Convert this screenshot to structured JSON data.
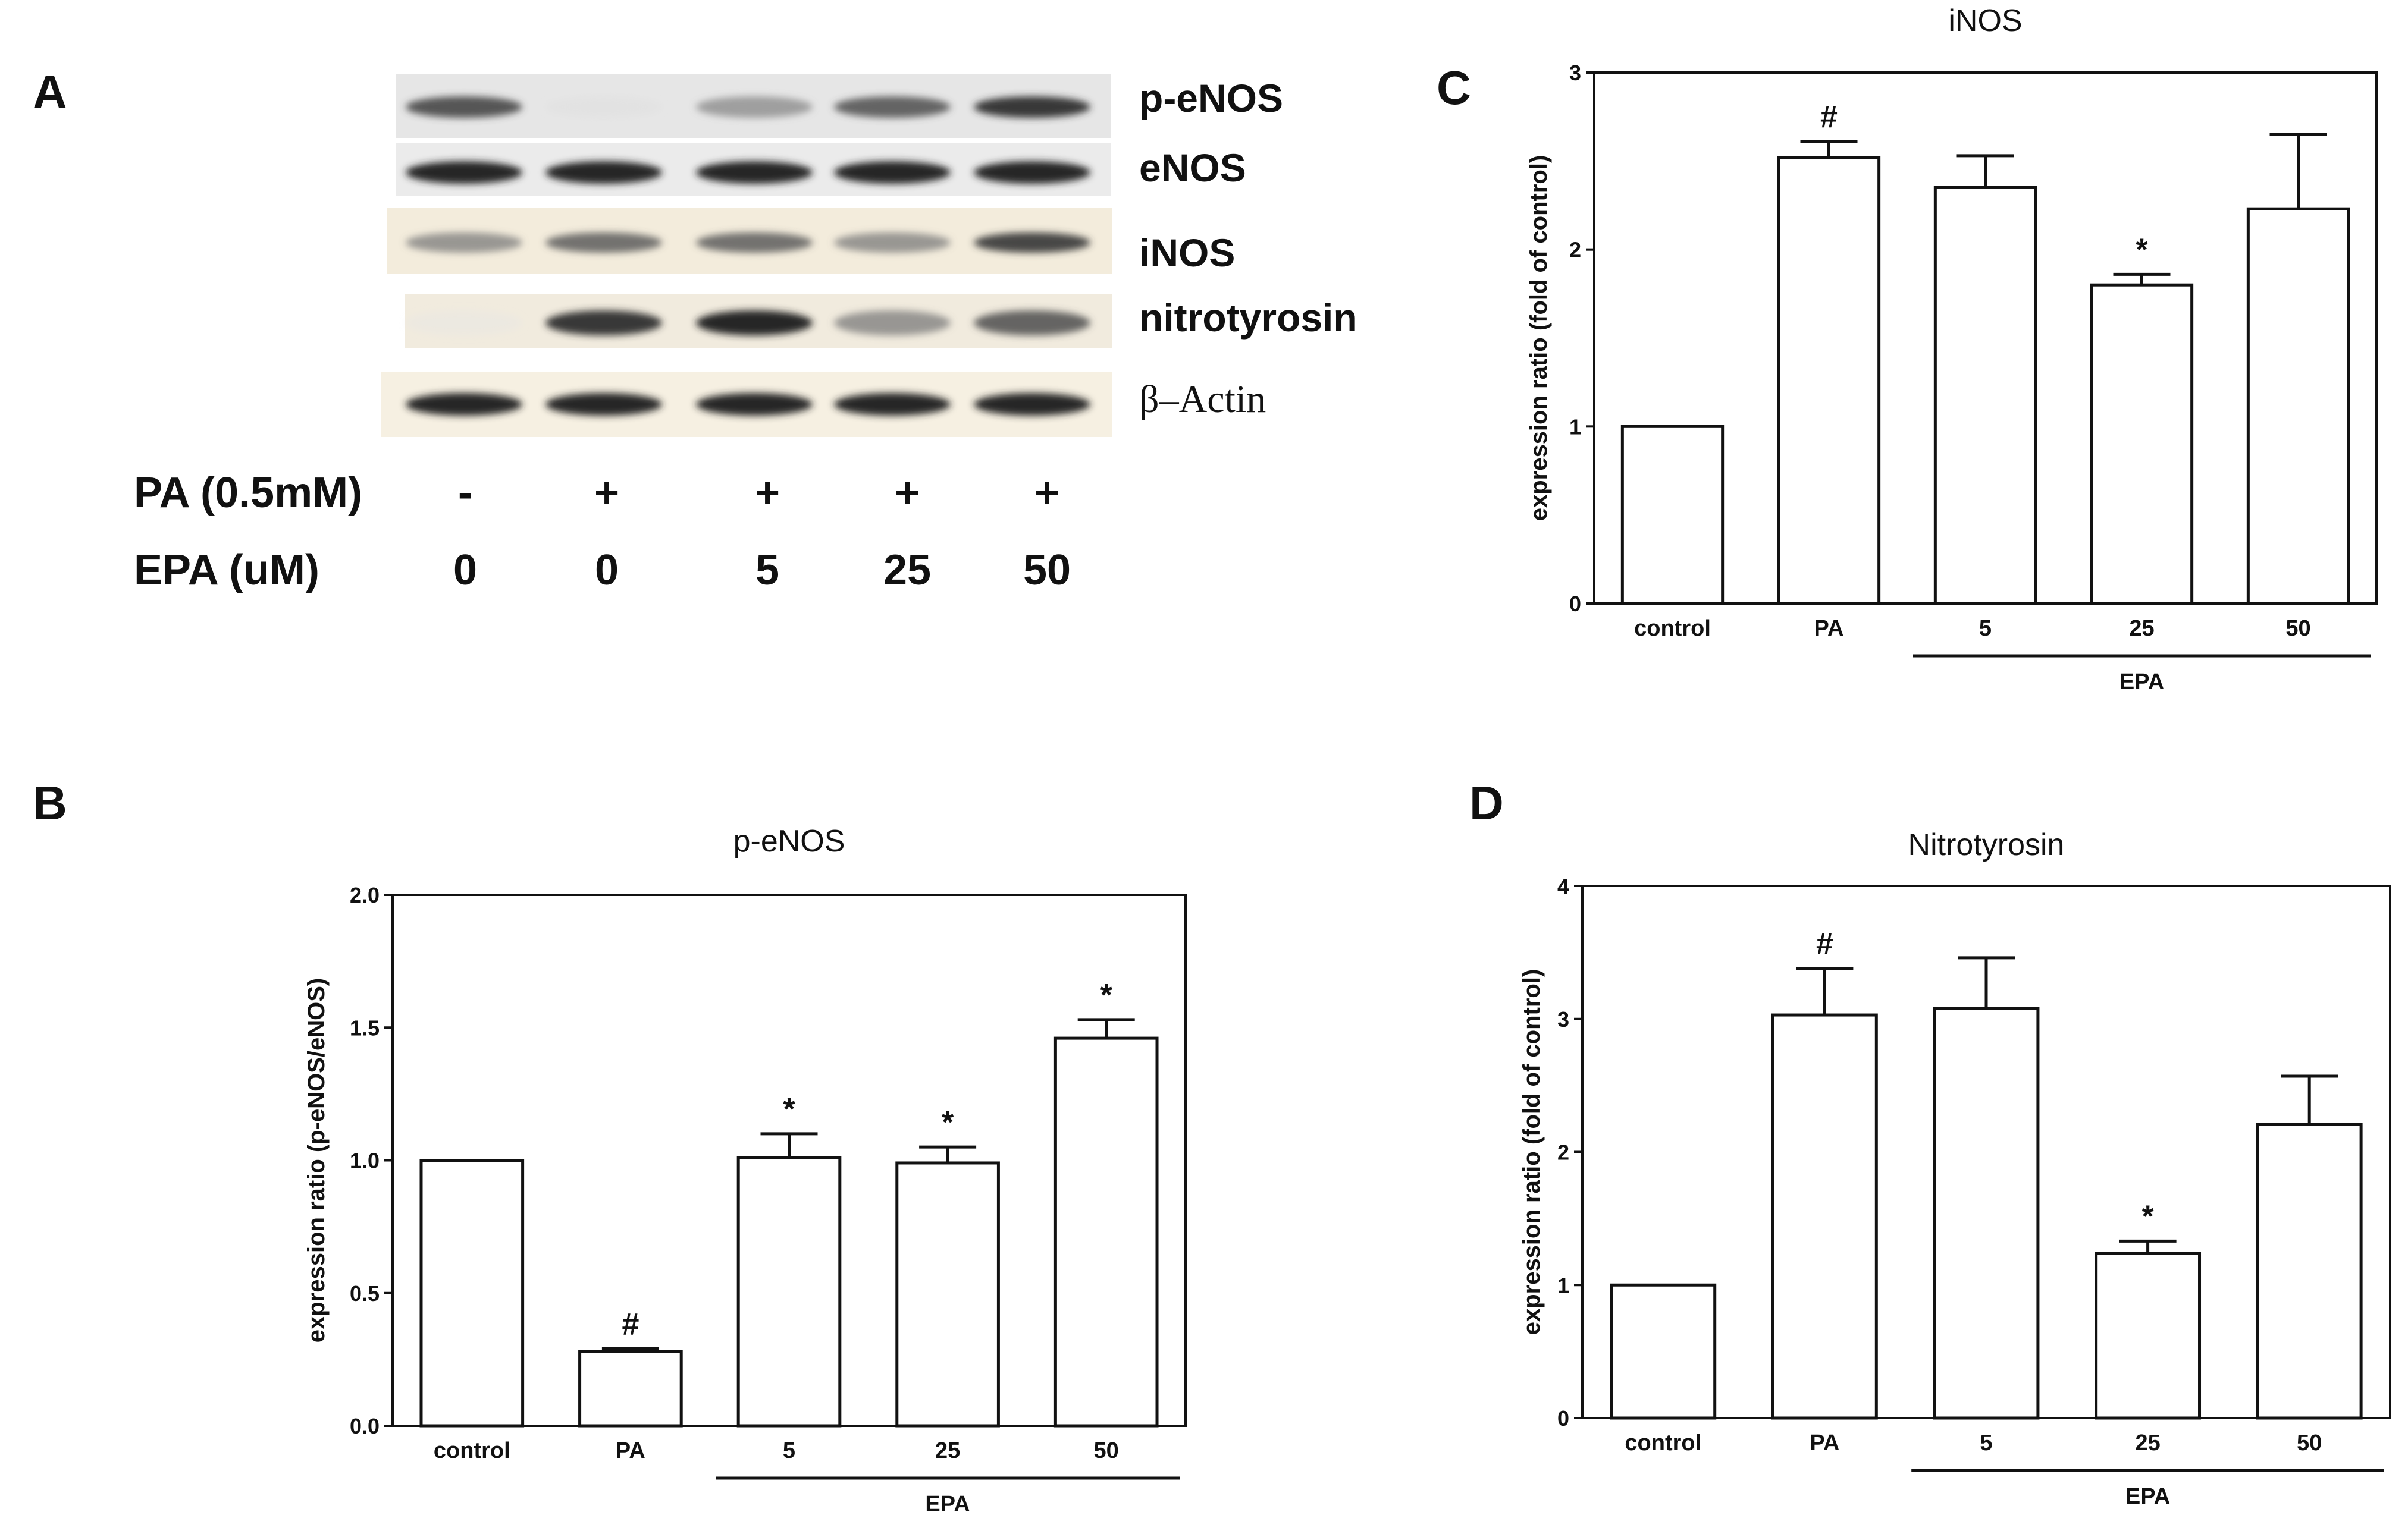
{
  "panel_labels": {
    "a": "A",
    "b": "B",
    "c": "C",
    "d": "D"
  },
  "western": {
    "bands": [
      "p-eNOS",
      "eNOS",
      "iNOS",
      "nitrotyrosin",
      "β–Actin"
    ],
    "intensities": [
      [
        0.85,
        0.1,
        0.55,
        0.8,
        0.95
      ],
      [
        1.0,
        1.0,
        1.0,
        1.0,
        1.0
      ],
      [
        0.6,
        0.75,
        0.75,
        0.6,
        0.9
      ],
      [
        0.05,
        0.95,
        1.0,
        0.6,
        0.8
      ],
      [
        1.0,
        1.0,
        1.0,
        1.0,
        1.0
      ]
    ],
    "treatment_rows": [
      {
        "label": "PA (0.5mM)",
        "values": [
          "-",
          "+",
          "+",
          "+",
          "+"
        ]
      },
      {
        "label": "EPA (uM)",
        "values": [
          "0",
          "0",
          "5",
          "25",
          "50"
        ]
      }
    ]
  },
  "chart_data": [
    {
      "panel": "B",
      "type": "bar",
      "title": "p-eNOS",
      "ylabel": "expression ratio (p-eNOS/eNOS)",
      "xlabel": "",
      "categories": [
        "control",
        "PA",
        "5",
        "25",
        "50"
      ],
      "values": [
        1.0,
        0.28,
        1.01,
        0.99,
        1.46
      ],
      "errors": [
        0,
        0.01,
        0.09,
        0.06,
        0.07
      ],
      "annotations": [
        "",
        "#",
        "*",
        "*",
        "*"
      ],
      "yticks": [
        "0.0",
        "0.5",
        "1.0",
        "1.5",
        "2.0"
      ],
      "ylim": [
        0,
        2.0
      ],
      "group_label": "EPA",
      "grid": false,
      "legend": "none"
    },
    {
      "panel": "C",
      "type": "bar",
      "title": "iNOS",
      "ylabel": "expression ratio (fold of control)",
      "xlabel": "",
      "categories": [
        "control",
        "PA",
        "5",
        "25",
        "50"
      ],
      "values": [
        1.0,
        2.52,
        2.35,
        1.8,
        2.23
      ],
      "errors": [
        0,
        0.09,
        0.18,
        0.06,
        0.42
      ],
      "annotations": [
        "",
        "#",
        "",
        "*",
        ""
      ],
      "yticks": [
        "0",
        "1",
        "2",
        "3"
      ],
      "ylim": [
        0,
        3
      ],
      "group_label": "EPA",
      "grid": false,
      "legend": "none"
    },
    {
      "panel": "D",
      "type": "bar",
      "title": "Nitrotyrosin",
      "ylabel": "expression ratio (fold of control)",
      "xlabel": "",
      "categories": [
        "control",
        "PA",
        "5",
        "25",
        "50"
      ],
      "values": [
        1.0,
        3.03,
        3.08,
        1.24,
        2.21
      ],
      "errors": [
        0,
        0.35,
        0.38,
        0.09,
        0.36
      ],
      "annotations": [
        "",
        "#",
        "",
        "*",
        ""
      ],
      "yticks": [
        "0",
        "1",
        "2",
        "3",
        "4"
      ],
      "ylim": [
        0,
        4
      ],
      "group_label": "EPA",
      "grid": false,
      "legend": "none"
    }
  ]
}
